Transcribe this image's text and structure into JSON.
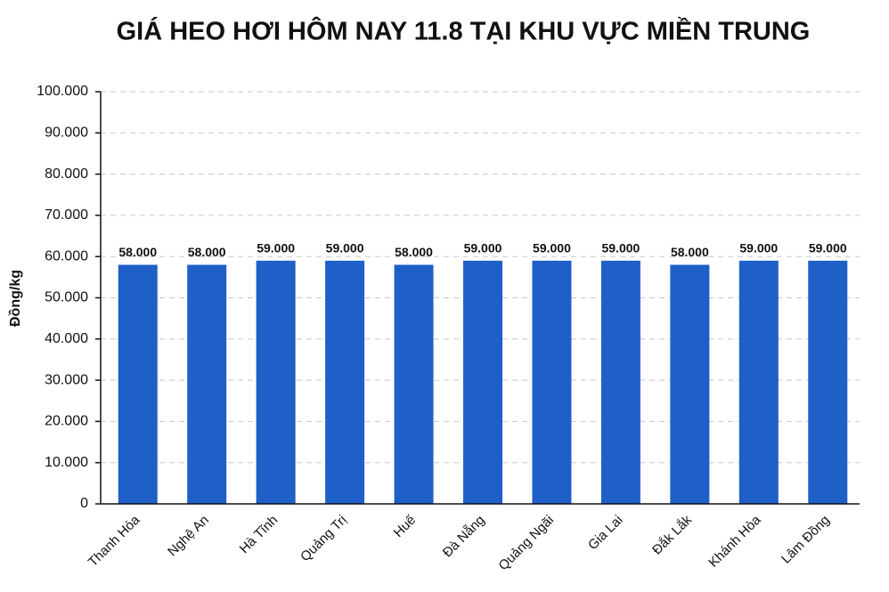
{
  "chart_data": {
    "type": "bar",
    "title": "GIÁ HEO HƠI HÔM NAY 11.8 TẠI KHU VỰC MIỀN TRUNG",
    "y_label": "Đồng/kg",
    "categories": [
      "Thanh Hóa",
      "Nghệ An",
      "Hà Tĩnh",
      "Quảng Trị",
      "Huế",
      "Đà Nẵng",
      "Quảng Ngãi",
      "Gia Lai",
      "Đắk Lắk",
      "Khánh Hòa",
      "Lâm Đồng"
    ],
    "values": [
      58000,
      58000,
      59000,
      59000,
      58000,
      59000,
      59000,
      59000,
      58000,
      59000,
      59000
    ],
    "value_labels": [
      "58.000",
      "58.000",
      "59.000",
      "59.000",
      "58.000",
      "59.000",
      "59.000",
      "59.000",
      "58.000",
      "59.000",
      "59.000"
    ],
    "color": "#1f5fc8",
    "ylim": [
      0,
      100000
    ],
    "yticks": [
      0,
      {
        "value": 10000,
        "label": "10.000"
      },
      {
        "value": 20000,
        "label": "20.000"
      },
      {
        "value": 30000,
        "label": "30.000"
      },
      {
        "value": 40000,
        "label": "40.000"
      },
      {
        "value": 50000,
        "label": "50.000"
      },
      {
        "value": 60000,
        "label": "60.000"
      },
      {
        "value": 70000,
        "label": "70.000"
      },
      {
        "value": 80000,
        "label": "80.000"
      },
      {
        "value": 90000,
        "label": "90.000"
      },
      {
        "value": 100000,
        "label": "100.000"
      }
    ],
    "grid": true
  }
}
